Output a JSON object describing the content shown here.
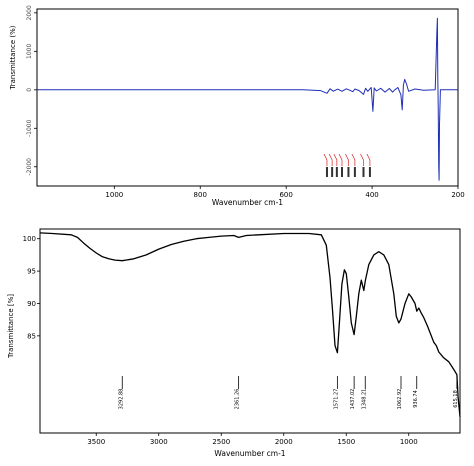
{
  "chart_data": [
    {
      "type": "line",
      "title": "",
      "xlabel": "Wavenumber cm-1",
      "ylabel": "Transmittance (%)",
      "x_reversed": true,
      "xlim": [
        1180,
        200
      ],
      "ylim": [
        -2500,
        2100
      ],
      "xticks": [
        1000,
        800,
        600,
        400,
        200
      ],
      "yticks": [
        2000,
        1000,
        0,
        -1000,
        -2000
      ],
      "yticklabels": [
        "2000",
        "1000",
        "0",
        "-1000",
        "-2000"
      ],
      "grid": false,
      "series": [
        {
          "color": "#1f2fb5",
          "points": [
            [
              1180,
              0
            ],
            [
              560,
              0
            ],
            [
              520,
              -20
            ],
            [
              505,
              -90
            ],
            [
              498,
              25
            ],
            [
              490,
              -35
            ],
            [
              480,
              18
            ],
            [
              470,
              -40
            ],
            [
              460,
              25
            ],
            [
              452,
              -10
            ],
            [
              445,
              -50
            ],
            [
              440,
              20
            ],
            [
              430,
              -20
            ],
            [
              420,
              -120
            ],
            [
              415,
              40
            ],
            [
              410,
              -40
            ],
            [
              402,
              60
            ],
            [
              398,
              -560
            ],
            [
              395,
              50
            ],
            [
              390,
              -30
            ],
            [
              380,
              40
            ],
            [
              370,
              -60
            ],
            [
              360,
              35
            ],
            [
              352,
              -60
            ],
            [
              348,
              -10
            ],
            [
              340,
              60
            ],
            [
              333,
              -130
            ],
            [
              330,
              -520
            ],
            [
              327,
              120
            ],
            [
              324,
              270
            ],
            [
              320,
              160
            ],
            [
              315,
              -40
            ],
            [
              300,
              20
            ],
            [
              280,
              -10
            ],
            [
              253,
              0
            ],
            [
              249,
              1520
            ],
            [
              248,
              1860
            ],
            [
              247,
              300
            ],
            [
              246,
              -400
            ],
            [
              245,
              -1950
            ],
            [
              244,
              -2350
            ],
            [
              243,
              -900
            ],
            [
              241,
              0
            ],
            [
              200,
              0
            ]
          ]
        }
      ],
      "peak_markers": {
        "color": "#d42020",
        "x": [
          505,
          493,
          482,
          470,
          455,
          440,
          420,
          405
        ]
      }
    },
    {
      "type": "line",
      "title": "",
      "xlabel": "Wavenumber cm-1",
      "ylabel": "Transmittance [%]",
      "x_reversed": true,
      "xlim": [
        3950,
        590
      ],
      "ylim": [
        70,
        101.5
      ],
      "xticks": [
        3500,
        3000,
        2500,
        2000,
        1500,
        1000
      ],
      "yticks": [
        100,
        95,
        90,
        85
      ],
      "grid": false,
      "series": [
        {
          "color": "#000000",
          "points": [
            [
              3950,
              100.9
            ],
            [
              3850,
              100.8
            ],
            [
              3700,
              100.6
            ],
            [
              3650,
              100.2
            ],
            [
              3600,
              99.3
            ],
            [
              3550,
              98.5
            ],
            [
              3500,
              97.8
            ],
            [
              3450,
              97.2
            ],
            [
              3400,
              96.9
            ],
            [
              3350,
              96.7
            ],
            [
              3292,
              96.6
            ],
            [
              3200,
              96.9
            ],
            [
              3100,
              97.5
            ],
            [
              3000,
              98.4
            ],
            [
              2900,
              99.1
            ],
            [
              2800,
              99.6
            ],
            [
              2700,
              100.0
            ],
            [
              2600,
              100.2
            ],
            [
              2500,
              100.4
            ],
            [
              2400,
              100.5
            ],
            [
              2361,
              100.2
            ],
            [
              2300,
              100.5
            ],
            [
              2200,
              100.6
            ],
            [
              2000,
              100.8
            ],
            [
              1800,
              100.8
            ],
            [
              1700,
              100.6
            ],
            [
              1660,
              99.0
            ],
            [
              1630,
              94.0
            ],
            [
              1610,
              89.0
            ],
            [
              1590,
              83.5
            ],
            [
              1571,
              82.4
            ],
            [
              1555,
              87.0
            ],
            [
              1535,
              93.0
            ],
            [
              1515,
              95.2
            ],
            [
              1500,
              94.6
            ],
            [
              1480,
              91.0
            ],
            [
              1460,
              87.0
            ],
            [
              1437,
              85.2
            ],
            [
              1420,
              88.0
            ],
            [
              1400,
              91.5
            ],
            [
              1380,
              93.6
            ],
            [
              1360,
              92.0
            ],
            [
              1348,
              93.5
            ],
            [
              1320,
              96.0
            ],
            [
              1280,
              97.5
            ],
            [
              1240,
              98.0
            ],
            [
              1200,
              97.5
            ],
            [
              1160,
              96.0
            ],
            [
              1120,
              91.5
            ],
            [
              1100,
              88.0
            ],
            [
              1080,
              87.0
            ],
            [
              1062,
              87.6
            ],
            [
              1050,
              88.5
            ],
            [
              1030,
              90.0
            ],
            [
              1000,
              91.5
            ],
            [
              980,
              91.0
            ],
            [
              950,
              90.0
            ],
            [
              936,
              88.8
            ],
            [
              920,
              89.3
            ],
            [
              900,
              88.5
            ],
            [
              880,
              87.8
            ],
            [
              850,
              86.5
            ],
            [
              820,
              85.0
            ],
            [
              800,
              84.0
            ],
            [
              780,
              83.5
            ],
            [
              760,
              82.5
            ],
            [
              720,
              81.6
            ],
            [
              680,
              81.0
            ],
            [
              640,
              79.8
            ],
            [
              615,
              79.0
            ],
            [
              605,
              75.5
            ],
            [
              590,
              72.5
            ]
          ]
        }
      ],
      "annotations": [
        {
          "x": 3292,
          "label": "3292.88"
        },
        {
          "x": 2361,
          "label": "2361.26"
        },
        {
          "x": 1571,
          "label": "1571.27"
        },
        {
          "x": 1437,
          "label": "1437.02"
        },
        {
          "x": 1348,
          "label": "1348.21"
        },
        {
          "x": 1062,
          "label": "1062.92"
        },
        {
          "x": 936,
          "label": "936.74"
        },
        {
          "x": 615,
          "label": "615.18"
        }
      ]
    }
  ]
}
